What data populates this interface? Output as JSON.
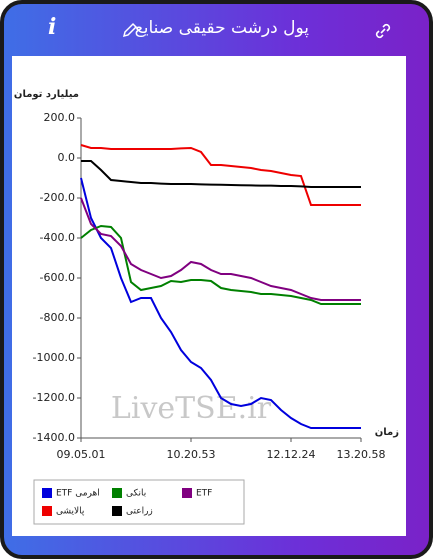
{
  "header": {
    "title": "پول درشت حقیقی صنایع"
  },
  "chart_data": {
    "type": "line",
    "y_label": "میلیارد تومان",
    "x_label": "زمان",
    "watermark": "LiveTSE.ir",
    "categories": [
      "09.05.01",
      null,
      null,
      null,
      null,
      null,
      null,
      null,
      null,
      null,
      null,
      "10.20.53",
      null,
      null,
      null,
      null,
      null,
      null,
      null,
      null,
      null,
      "12.12.24",
      null,
      null,
      null,
      null,
      null,
      null,
      "13.20.58"
    ],
    "ylim": [
      -1400,
      200
    ],
    "yticks": [
      {
        "value": 200,
        "label": "200.0"
      },
      {
        "value": 0,
        "label": "0.0"
      },
      {
        "value": -200,
        "label": "-200.0"
      },
      {
        "value": -400,
        "label": "-400.0"
      },
      {
        "value": -600,
        "label": "-600.0"
      },
      {
        "value": -800,
        "label": "-800.0"
      },
      {
        "value": -1000,
        "label": "-1000.0"
      },
      {
        "value": -1200,
        "label": "-1200.0"
      },
      {
        "value": -1400,
        "label": "-1400.0"
      }
    ],
    "series": [
      {
        "name": "ETF اهرمی",
        "color": "#0000dd",
        "values": [
          -100,
          -300,
          -400,
          -450,
          -600,
          -720,
          -700,
          -700,
          -800,
          -870,
          -960,
          -1020,
          -1050,
          -1110,
          -1200,
          -1230,
          -1240,
          -1230,
          -1200,
          -1210,
          -1260,
          -1300,
          -1330,
          -1350,
          -1350,
          -1350,
          -1350,
          -1350,
          -1350
        ]
      },
      {
        "name": "بانکی",
        "color": "#008000",
        "values": [
          -400,
          -360,
          -340,
          -345,
          -400,
          -620,
          -660,
          -650,
          -640,
          -615,
          -620,
          -610,
          -610,
          -615,
          -650,
          -660,
          -665,
          -670,
          -680,
          -680,
          -685,
          -690,
          -700,
          -710,
          -730,
          -730,
          -730,
          -730,
          -730
        ]
      },
      {
        "name": "ETF",
        "color": "#800080",
        "values": [
          -200,
          -330,
          -380,
          -390,
          -440,
          -530,
          -560,
          -580,
          -600,
          -590,
          -560,
          -520,
          -530,
          -560,
          -580,
          -580,
          -590,
          -600,
          -620,
          -640,
          -650,
          -660,
          -680,
          -700,
          -710,
          -710,
          -710,
          -710,
          -710
        ]
      },
      {
        "name": "پالایشی",
        "color": "#ee0000",
        "values": [
          65,
          50,
          50,
          45,
          45,
          45,
          45,
          45,
          45,
          45,
          48,
          50,
          30,
          -35,
          -35,
          -40,
          -45,
          -50,
          -60,
          -65,
          -75,
          -85,
          -90,
          -235,
          -235,
          -235,
          -235,
          -235,
          -235
        ]
      },
      {
        "name": "زراعتی",
        "color": "#000000",
        "values": [
          -15,
          -15,
          -60,
          -110,
          -115,
          -120,
          -125,
          -125,
          -128,
          -130,
          -130,
          -130,
          -132,
          -133,
          -134,
          -135,
          -136,
          -137,
          -138,
          -138,
          -140,
          -140,
          -142,
          -145,
          -145,
          -145,
          -145,
          -145,
          -145
        ]
      }
    ]
  }
}
